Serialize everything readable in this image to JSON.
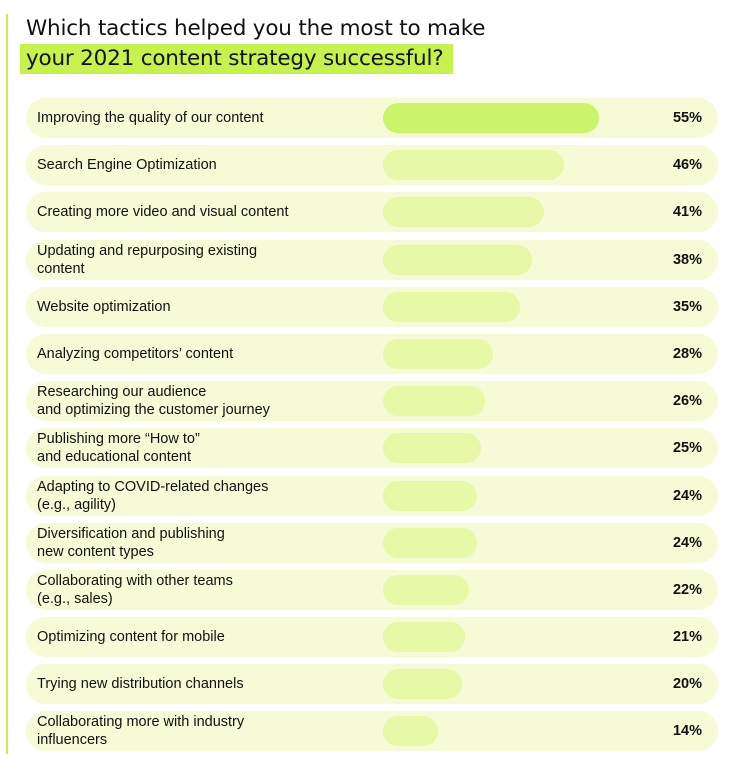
{
  "colors": {
    "accent": "#c6f24e",
    "row_background": "#f6fbd6",
    "bar": "#e7f8a6",
    "bar_top": "#ccf46a"
  },
  "chart_data": {
    "type": "bar",
    "orientation": "horizontal",
    "title_line1": "Which tactics helped you the most to make",
    "title_line2": "your 2021 content strategy successful?",
    "xlabel": "",
    "ylabel": "",
    "xlim": [
      0,
      100
    ],
    "grid": false,
    "legend": "none",
    "categories": [
      "Improving the quality of our content",
      "Search Engine Optimization",
      "Creating more video and visual content",
      "Updating and repurposing existing\ncontent",
      "Website optimization",
      "Analyzing competitors’ content",
      "Researching our audience\nand optimizing the customer journey",
      "Publishing more “How to”\nand educational content",
      "Adapting to COVID-related changes\n(e.g., agility)",
      "Diversification and publishing\nnew content types",
      "Collaborating with other teams\n(e.g., sales)",
      "Optimizing content for mobile",
      "Trying new distribution channels",
      "Collaborating more with industry\ninfluencers"
    ],
    "values": [
      55,
      46,
      41,
      38,
      35,
      28,
      26,
      25,
      24,
      24,
      22,
      21,
      20,
      14
    ],
    "value_labels": [
      "55%",
      "46%",
      "41%",
      "38%",
      "35%",
      "28%",
      "26%",
      "25%",
      "24%",
      "24%",
      "22%",
      "21%",
      "20%",
      "14%"
    ]
  }
}
